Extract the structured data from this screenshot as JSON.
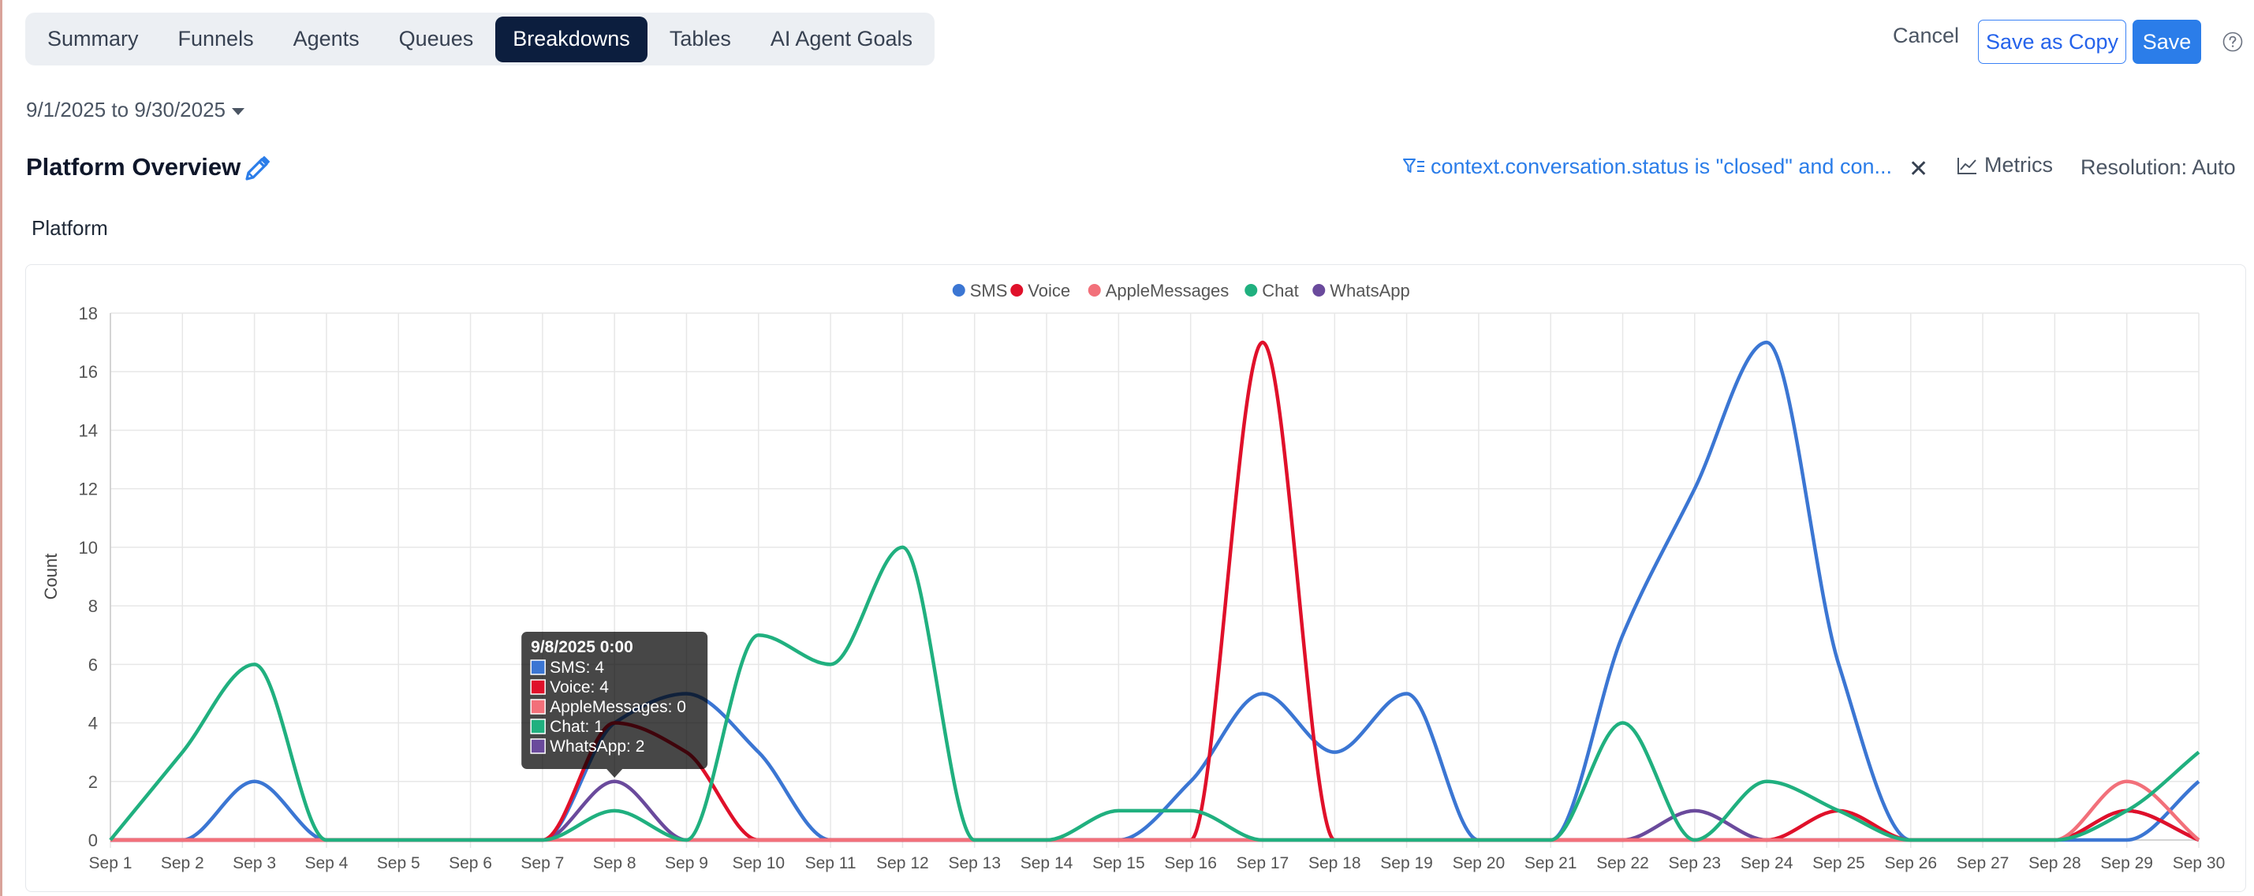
{
  "tabs": [
    {
      "label": "Summary",
      "active": false
    },
    {
      "label": "Funnels",
      "active": false
    },
    {
      "label": "Agents",
      "active": false
    },
    {
      "label": "Queues",
      "active": false
    },
    {
      "label": "Breakdowns",
      "active": true
    },
    {
      "label": "Tables",
      "active": false
    },
    {
      "label": "AI Agent Goals",
      "active": false
    }
  ],
  "actions": {
    "cancel": "Cancel",
    "save_copy": "Save as Copy",
    "save": "Save"
  },
  "date_range": "9/1/2025 to 9/30/2025",
  "title": "Platform Overview",
  "filter": "context.conversation.status is \"closed\" and con...",
  "metrics": "Metrics",
  "resolution": "Resolution: Auto",
  "section_label": "Platform",
  "colors": {
    "accent": "#2b7de9",
    "tab_active": "#0c1e3e"
  },
  "icons": [
    "pencil-icon",
    "filter-icon",
    "close-icon",
    "chart-line-icon",
    "help-icon"
  ],
  "chart_data": {
    "type": "line",
    "title": "",
    "xlabel": "",
    "ylabel": "Count",
    "ylim": [
      0,
      18
    ],
    "ytick_step": 2,
    "grid": true,
    "legend": "top-center",
    "categories": [
      "Sep 1",
      "Sep 2",
      "Sep 3",
      "Sep 4",
      "Sep 5",
      "Sep 6",
      "Sep 7",
      "Sep 8",
      "Sep 9",
      "Sep 10",
      "Sep 11",
      "Sep 12",
      "Sep 13",
      "Sep 14",
      "Sep 15",
      "Sep 16",
      "Sep 17",
      "Sep 18",
      "Sep 19",
      "Sep 20",
      "Sep 21",
      "Sep 22",
      "Sep 23",
      "Sep 24",
      "Sep 25",
      "Sep 26",
      "Sep 27",
      "Sep 28",
      "Sep 29",
      "Sep 30"
    ],
    "series": [
      {
        "name": "SMS",
        "color": "#3b76d3",
        "values": [
          0,
          0,
          2,
          0,
          0,
          0,
          0,
          4,
          5,
          3,
          0,
          0,
          0,
          0,
          0,
          2,
          5,
          3,
          5,
          0,
          0,
          7,
          12,
          17,
          6,
          0,
          0,
          0,
          0,
          2
        ]
      },
      {
        "name": "Voice",
        "color": "#e0102a",
        "values": [
          0,
          0,
          0,
          0,
          0,
          0,
          0,
          4,
          3,
          0,
          0,
          0,
          0,
          0,
          0,
          0,
          17,
          0,
          0,
          0,
          0,
          0,
          0,
          0,
          1,
          0,
          0,
          0,
          1,
          0
        ]
      },
      {
        "name": "AppleMessages",
        "color": "#f2707a",
        "values": [
          0,
          0,
          0,
          0,
          0,
          0,
          0,
          0,
          0,
          0,
          0,
          0,
          0,
          0,
          0,
          0,
          0,
          0,
          0,
          0,
          0,
          0,
          0,
          0,
          0,
          0,
          0,
          0,
          2,
          0
        ]
      },
      {
        "name": "Chat",
        "color": "#20b07f",
        "values": [
          0,
          3,
          6,
          0,
          0,
          0,
          0,
          1,
          0,
          7,
          6,
          10,
          0,
          0,
          1,
          1,
          0,
          0,
          0,
          0,
          0,
          4,
          0,
          2,
          1,
          0,
          0,
          0,
          1,
          3
        ]
      },
      {
        "name": "WhatsApp",
        "color": "#6a4a9c",
        "values": [
          0,
          0,
          0,
          0,
          0,
          0,
          0,
          2,
          0,
          0,
          0,
          0,
          0,
          0,
          0,
          0,
          0,
          0,
          0,
          0,
          0,
          0,
          1,
          0,
          0,
          0,
          0,
          0,
          1,
          0
        ]
      }
    ],
    "tooltip": {
      "title": "9/8/2025 0:00",
      "items": [
        "SMS: 4",
        "Voice: 4",
        "AppleMessages: 0",
        "Chat: 1",
        "WhatsApp: 2"
      ],
      "category_index": 7
    }
  }
}
